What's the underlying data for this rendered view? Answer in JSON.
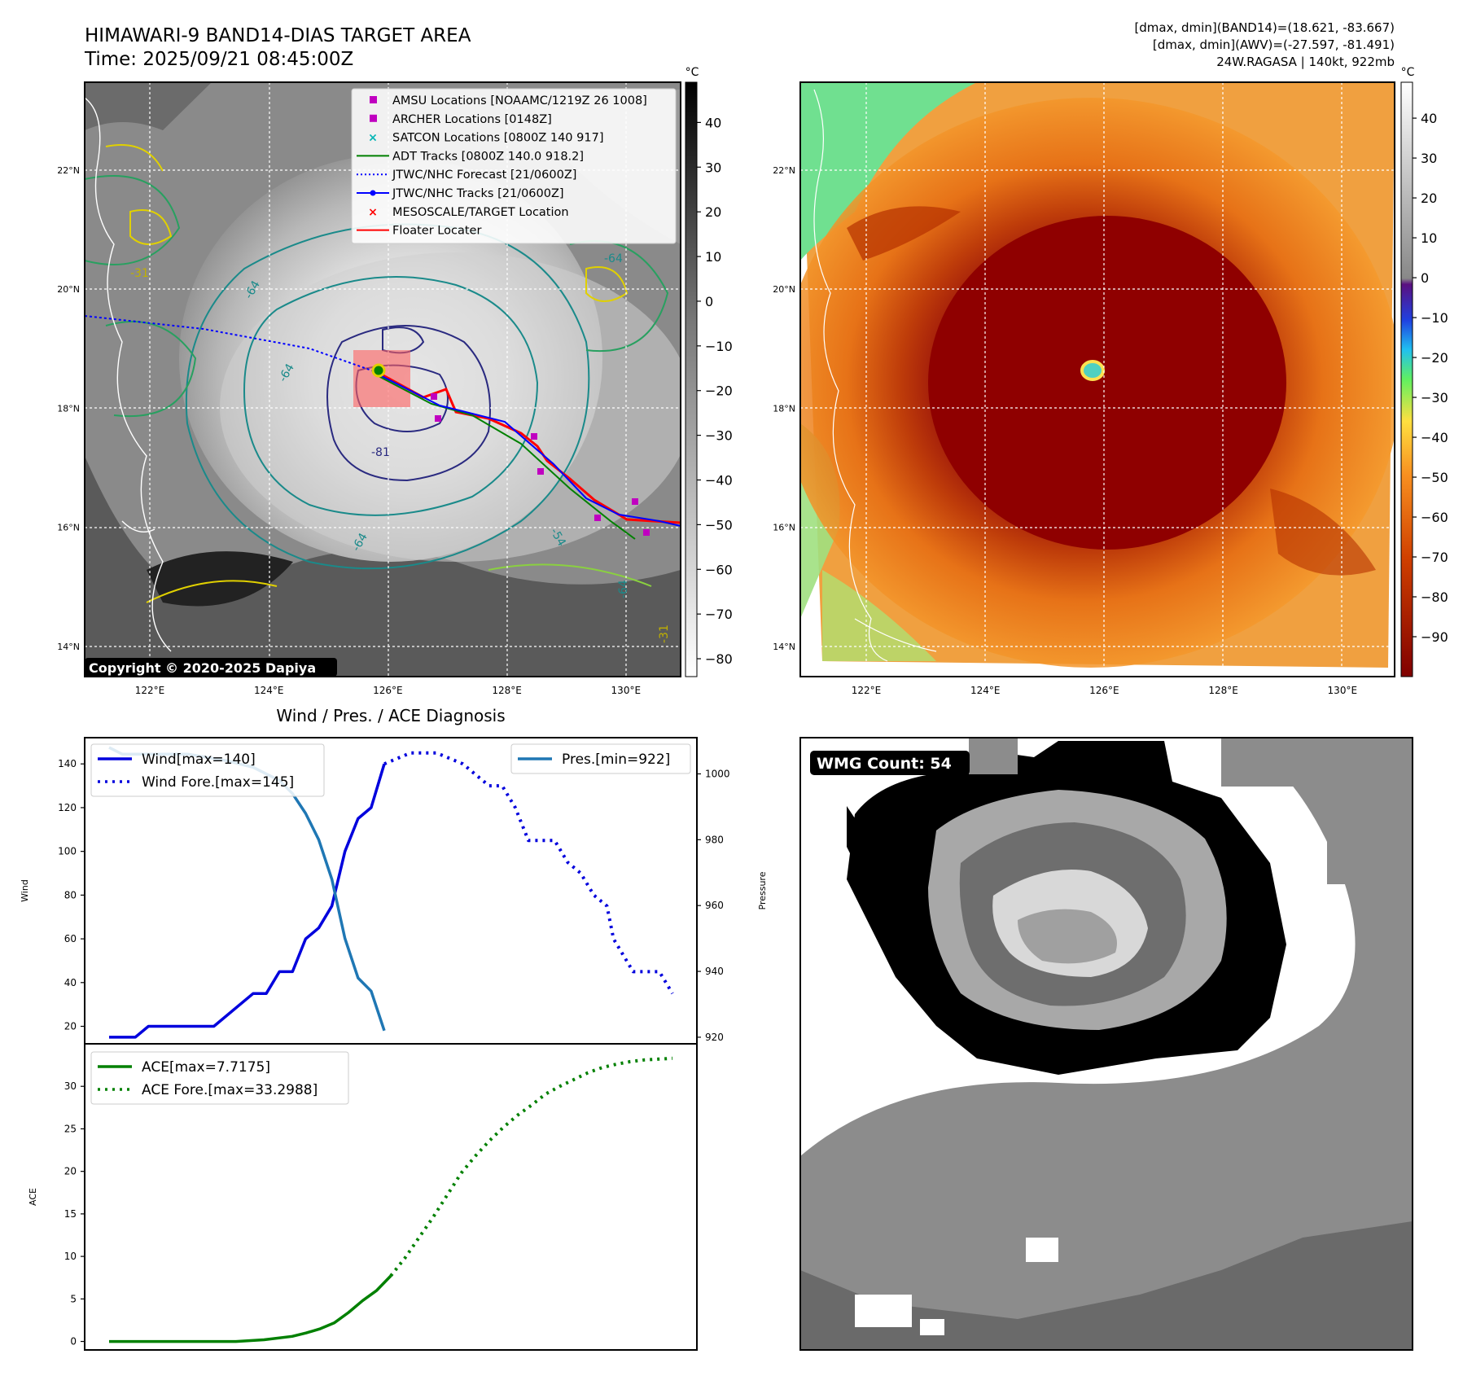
{
  "header": {
    "title_line1": "HIMAWARI-9 BAND14-DIAS TARGET AREA",
    "title_line2": "Time: 2025/09/21 08:45:00Z",
    "info_line1": "[dmax, dmin](BAND14)=(18.621, -83.667)",
    "info_line2": "[dmax, dmin](AWV)=(-27.597, -81.491)",
    "info_line3": "24W.RAGASA | 140kt, 922mb"
  },
  "map": {
    "lat_labels": [
      "22°N",
      "20°N",
      "18°N",
      "16°N",
      "14°N"
    ],
    "lat_values": [
      22,
      20,
      18,
      16,
      14
    ],
    "lon_labels": [
      "122°E",
      "124°E",
      "126°E",
      "128°E",
      "130°E"
    ],
    "lon_values": [
      122,
      124,
      126,
      128,
      130
    ],
    "copyright": "Copyright © 2020-2025 Dapiya",
    "legend": [
      {
        "label": "AMSU Locations [NOAAMC/1219Z 26 1008]",
        "marker": "square",
        "color": "#c000c0"
      },
      {
        "label": "ARCHER Locations [0148Z]",
        "marker": "square",
        "color": "#c000c0"
      },
      {
        "label": "SATCON Locations [0800Z 140 917]",
        "marker": "x",
        "color": "#00b5b5"
      },
      {
        "label": "ADT Tracks [0800Z 140.0 918.2]",
        "marker": "line",
        "color": "#008000"
      },
      {
        "label": "JTWC/NHC Forecast [21/0600Z]",
        "marker": "dotted",
        "color": "#0000ff"
      },
      {
        "label": "JTWC/NHC Tracks [21/0600Z]",
        "marker": "line-dot",
        "color": "#0000ff"
      },
      {
        "label": "MESOSCALE/TARGET Location",
        "marker": "x",
        "color": "#ff0000"
      },
      {
        "label": "Floater Locater",
        "marker": "line",
        "color": "#ff0000"
      }
    ],
    "contour_labels": [
      "-64",
      "-64",
      "-64",
      "-64",
      "-81",
      "-54",
      "-31",
      "-64",
      "-31"
    ]
  },
  "colorbar_left": {
    "unit": "°C",
    "ticks": [
      "40",
      "30",
      "20",
      "10",
      "0",
      "−10",
      "−20",
      "−30",
      "−40",
      "−50",
      "−60",
      "−70",
      "−80"
    ],
    "tick_values": [
      40,
      30,
      20,
      10,
      0,
      -10,
      -20,
      -30,
      -40,
      -50,
      -60,
      -70,
      -80
    ],
    "range": [
      -84,
      49
    ]
  },
  "colorbar_right": {
    "unit": "°C",
    "ticks": [
      "40",
      "30",
      "20",
      "10",
      "0",
      "−10",
      "−20",
      "−30",
      "−40",
      "−50",
      "−60",
      "−70",
      "−80",
      "−90"
    ],
    "tick_values": [
      40,
      30,
      20,
      10,
      0,
      -10,
      -20,
      -30,
      -40,
      -50,
      -60,
      -70,
      -80,
      -90
    ],
    "range": [
      -100,
      49
    ]
  },
  "wmg": {
    "label": "WMG Count: 54"
  },
  "chart_data": [
    {
      "type": "line",
      "title": "Wind / Pres. / ACE Diagnosis",
      "ylabel": "Wind",
      "y2label": "Pressure",
      "ylim": [
        12,
        152
      ],
      "y2lim": [
        918,
        1011
      ],
      "yticks": [
        20,
        40,
        60,
        80,
        100,
        120,
        140
      ],
      "y2ticks": [
        920,
        940,
        960,
        980,
        1000
      ],
      "x": [
        0,
        1,
        2,
        3,
        4,
        5,
        6,
        7,
        8,
        9,
        10,
        11,
        12,
        13,
        14,
        15,
        16,
        17,
        18,
        19,
        20,
        21,
        22,
        23,
        24,
        25,
        26,
        27,
        28,
        29,
        30,
        31,
        32,
        33,
        34,
        35,
        36,
        37,
        38,
        39,
        40
      ],
      "series": [
        {
          "name": "Wind[max=140]",
          "color": "#0000dd",
          "style": "solid",
          "points": [
            [
              0,
              15
            ],
            [
              2,
              15
            ],
            [
              3,
              20
            ],
            [
              8,
              20
            ],
            [
              11,
              35
            ],
            [
              12,
              35
            ],
            [
              13,
              45
            ],
            [
              14,
              45
            ],
            [
              15,
              60
            ],
            [
              16,
              65
            ],
            [
              17,
              75
            ],
            [
              18,
              100
            ],
            [
              19,
              115
            ],
            [
              20,
              120
            ],
            [
              21,
              140
            ]
          ]
        },
        {
          "name": "Wind Fore.[max=145]",
          "color": "#0000dd",
          "style": "dotted",
          "points": [
            [
              21,
              140
            ],
            [
              23,
              145
            ],
            [
              25,
              145
            ],
            [
              27,
              140
            ],
            [
              28,
              135
            ],
            [
              29,
              130
            ],
            [
              30,
              130
            ],
            [
              31,
              120
            ],
            [
              32,
              105
            ],
            [
              34,
              105
            ],
            [
              35,
              95
            ],
            [
              36,
              90
            ],
            [
              37,
              80
            ],
            [
              38,
              75
            ],
            [
              38.5,
              60
            ],
            [
              39,
              55
            ],
            [
              40,
              45
            ],
            [
              42,
              45
            ],
            [
              43,
              35
            ]
          ]
        },
        {
          "name": "Pres.[min=922]",
          "color": "#1f77b4",
          "style": "solid",
          "axis": "y2",
          "points": [
            [
              0,
              1008
            ],
            [
              1,
              1006
            ],
            [
              6,
              1006
            ],
            [
              9,
              1004
            ],
            [
              11,
              1002
            ],
            [
              13,
              998
            ],
            [
              14,
              994
            ],
            [
              15,
              988
            ],
            [
              16,
              980
            ],
            [
              17,
              968
            ],
            [
              18,
              950
            ],
            [
              19,
              938
            ],
            [
              20,
              934
            ],
            [
              21,
              922
            ]
          ]
        }
      ]
    },
    {
      "type": "line",
      "ylabel": "ACE",
      "ylim": [
        -1.0,
        35.0
      ],
      "yticks": [
        0,
        5,
        10,
        15,
        20,
        25,
        30
      ],
      "series": [
        {
          "name": "ACE[max=7.7175]",
          "color": "#008000",
          "style": "solid",
          "points": [
            [
              0,
              0
            ],
            [
              9,
              0
            ],
            [
              11,
              0.2
            ],
            [
              13,
              0.6
            ],
            [
              14,
              1.0
            ],
            [
              15,
              1.5
            ],
            [
              16,
              2.2
            ],
            [
              17,
              3.4
            ],
            [
              18,
              4.8
            ],
            [
              19,
              6.0
            ],
            [
              20,
              7.7175
            ]
          ]
        },
        {
          "name": "ACE Fore.[max=33.2988]",
          "color": "#008000",
          "style": "dotted",
          "points": [
            [
              20,
              7.7175
            ],
            [
              21,
              9.8
            ],
            [
              22,
              12.2
            ],
            [
              23,
              14.6
            ],
            [
              24,
              17.2
            ],
            [
              25,
              19.8
            ],
            [
              26,
              21.8
            ],
            [
              27,
              23.6
            ],
            [
              28,
              25.2
            ],
            [
              29,
              26.6
            ],
            [
              30,
              27.8
            ],
            [
              31,
              29.1
            ],
            [
              32,
              30.0
            ],
            [
              33,
              30.8
            ],
            [
              34,
              31.6
            ],
            [
              35,
              32.2
            ],
            [
              36,
              32.6
            ],
            [
              37,
              32.9
            ],
            [
              38,
              33.1
            ],
            [
              39,
              33.2
            ],
            [
              40,
              33.2988
            ]
          ]
        }
      ]
    }
  ]
}
